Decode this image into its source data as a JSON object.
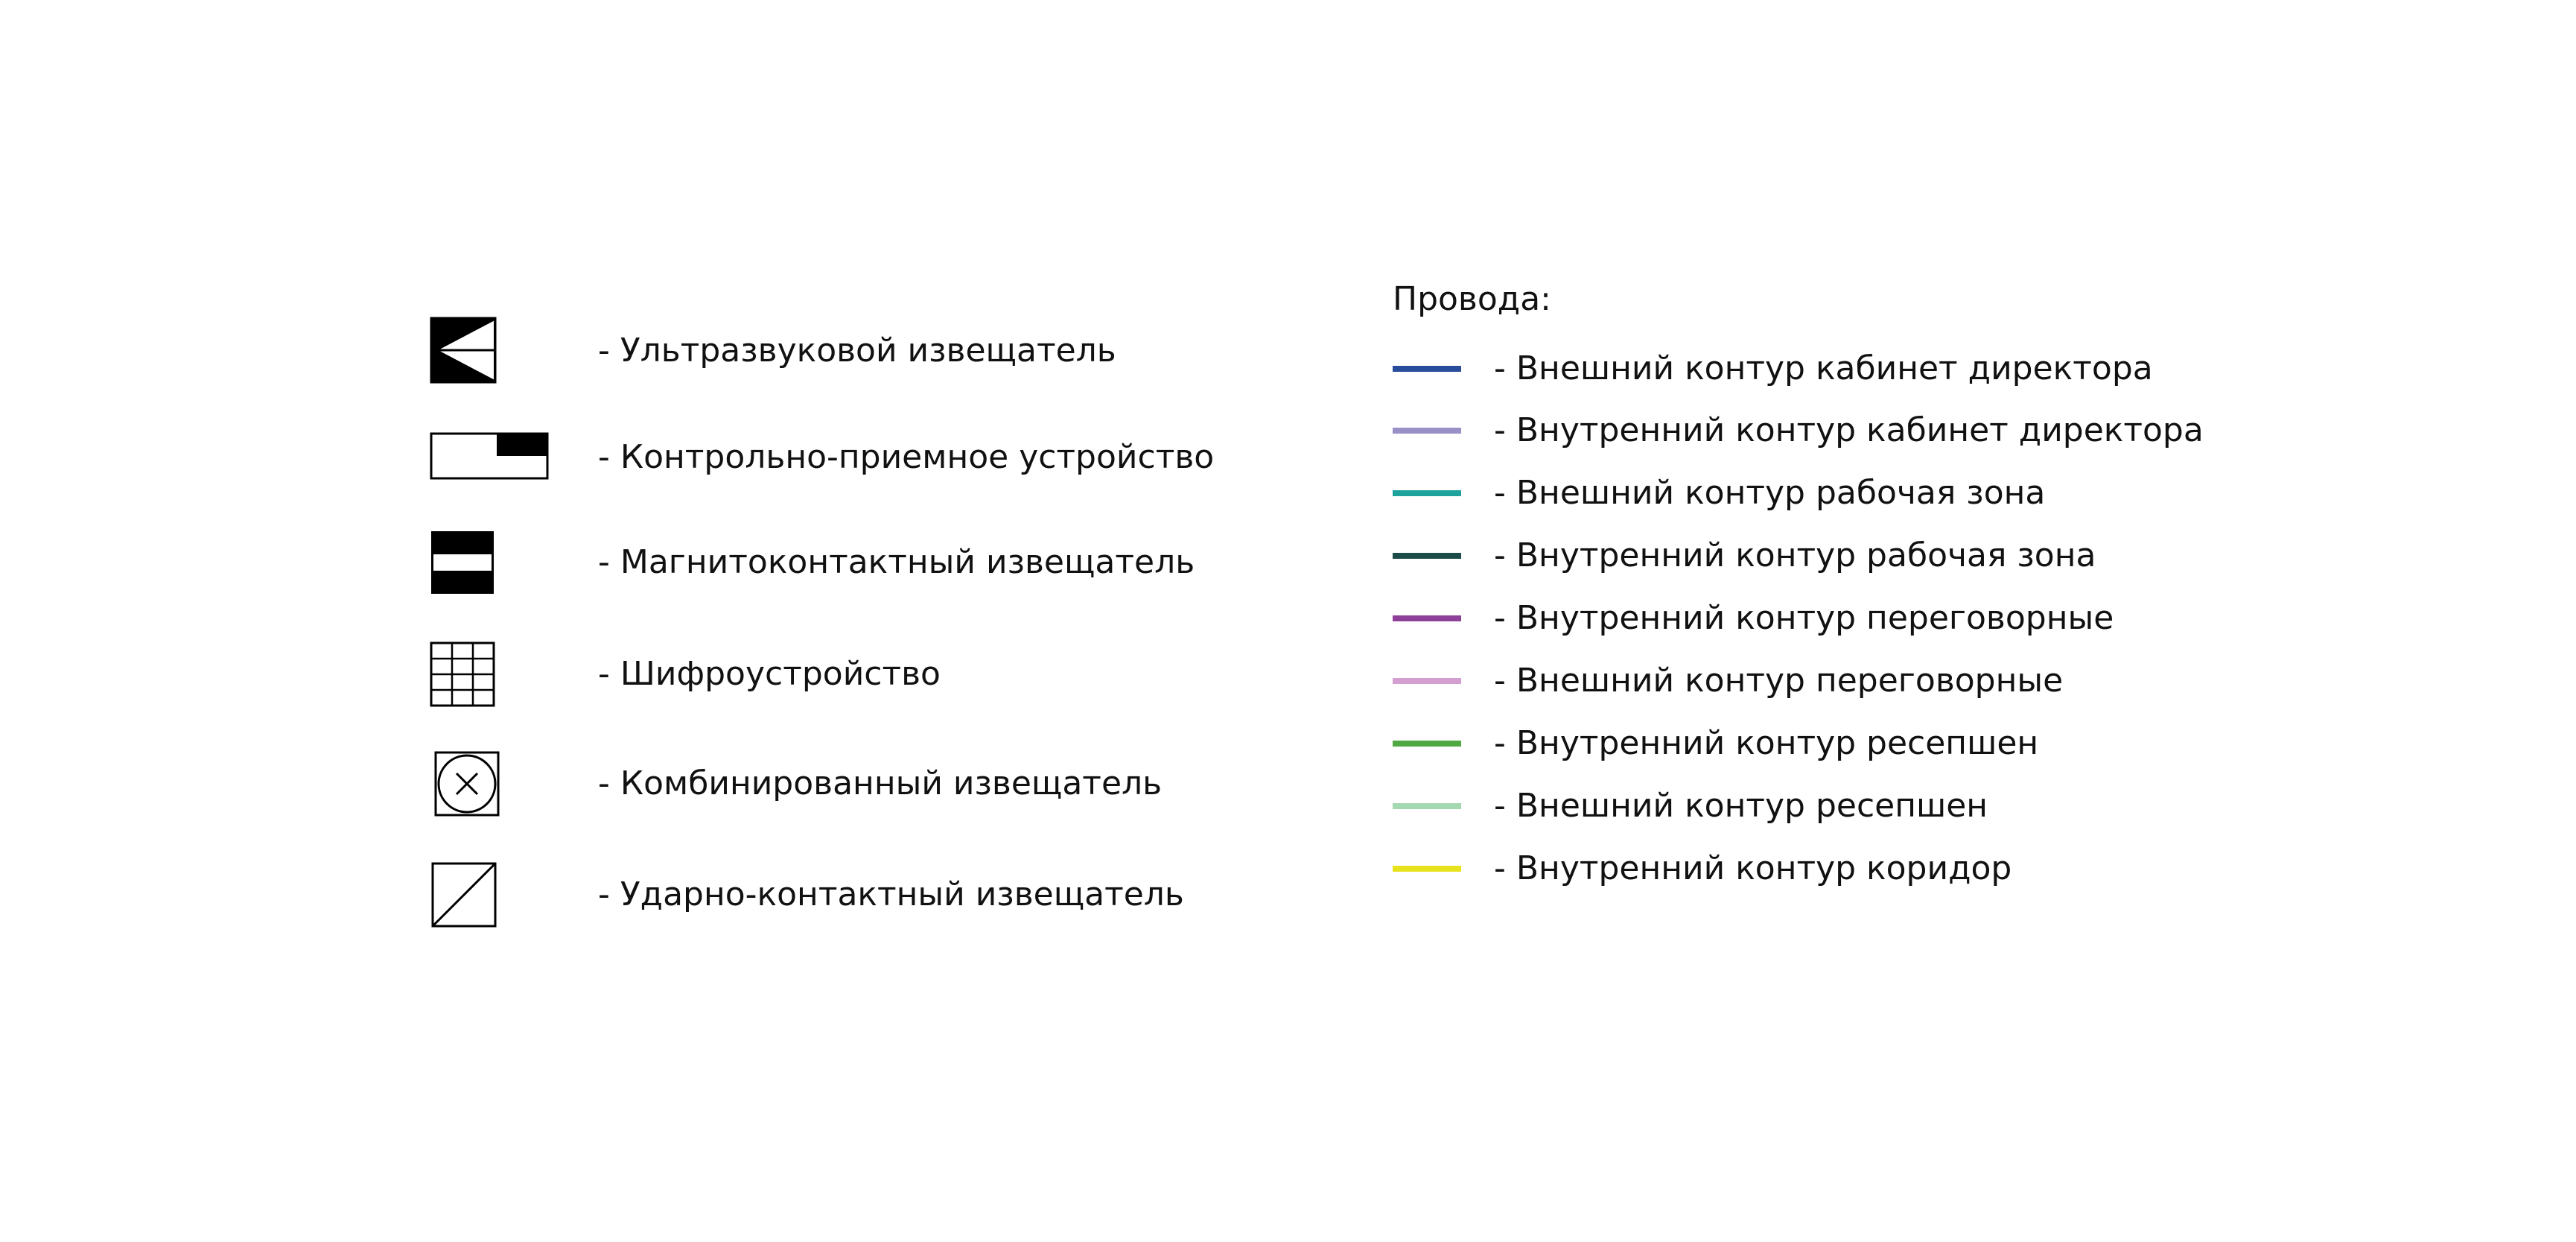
{
  "symbols": [
    {
      "icon": "ultrasonic-detector-icon",
      "label": "- Ультразвуковой извещатель"
    },
    {
      "icon": "control-panel-icon",
      "label": "- Контрольно-приемное устройство"
    },
    {
      "icon": "magnetic-contact-icon",
      "label": "- Магнитоконтактный извещатель"
    },
    {
      "icon": "keypad-icon",
      "label": "- Шифроустройство"
    },
    {
      "icon": "combined-detector-icon",
      "label": "- Комбинированный извещатель"
    },
    {
      "icon": "shock-contact-icon",
      "label": "- Ударно-контактный извещатель"
    }
  ],
  "wires": {
    "title": "Провода:",
    "items": [
      {
        "color": "#2a4c9c",
        "label": "- Внешний контур кабинет директора"
      },
      {
        "color": "#9a90c8",
        "label": "- Внутренний контур кабинет директора"
      },
      {
        "color": "#1ea39c",
        "label": "- Внешний контур рабочая зона"
      },
      {
        "color": "#1c4c4a",
        "label": "- Внутренний контур рабочая зона"
      },
      {
        "color": "#8e3f97",
        "label": "- Внутренний контур переговорные"
      },
      {
        "color": "#d29fd0",
        "label": "- Внешний контур переговорные"
      },
      {
        "color": "#4fa842",
        "label": "- Внутренний контур ресепшен"
      },
      {
        "color": "#a4d8b0",
        "label": "- Внешний контур ресепшен"
      },
      {
        "color": "#e7e21c",
        "label": "- Внутренний контур коридор"
      }
    ]
  }
}
